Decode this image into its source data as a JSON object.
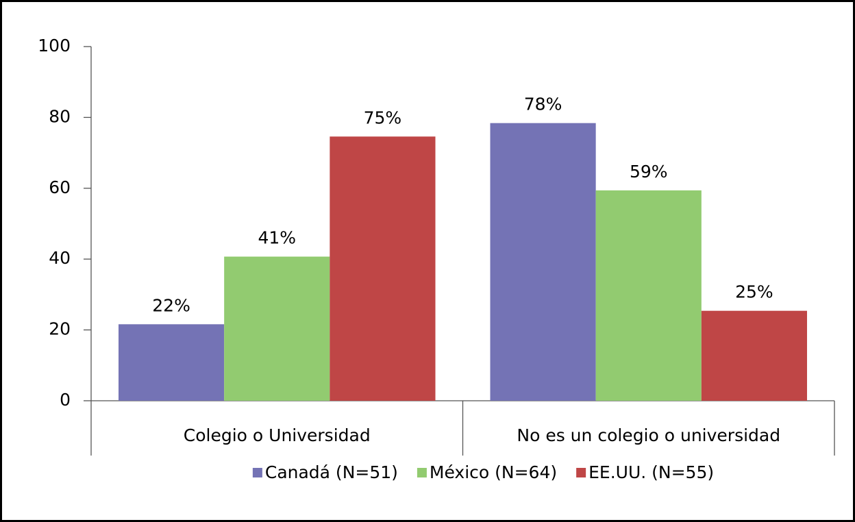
{
  "chart_data": {
    "type": "bar",
    "categories": [
      "Colegio o Universidad",
      "No es un colegio o universidad"
    ],
    "series": [
      {
        "name": "Canadá (N=51)",
        "color": "#7473b5",
        "values": [
          21.6,
          78.4
        ],
        "value_labels": [
          "22%",
          "78%"
        ]
      },
      {
        "name": "México (N=64)",
        "color": "#92cb70",
        "values": [
          40.7,
          59.4
        ],
        "value_labels": [
          "41%",
          "59%"
        ]
      },
      {
        "name": "EE.UU. (N=55)",
        "color": "#bf4646",
        "values": [
          74.6,
          25.4
        ],
        "value_labels": [
          "75%",
          "25%"
        ]
      }
    ],
    "ylim": [
      0,
      100
    ],
    "yticks": [
      0,
      20,
      40,
      60,
      80,
      100
    ],
    "legend": "bottom"
  }
}
